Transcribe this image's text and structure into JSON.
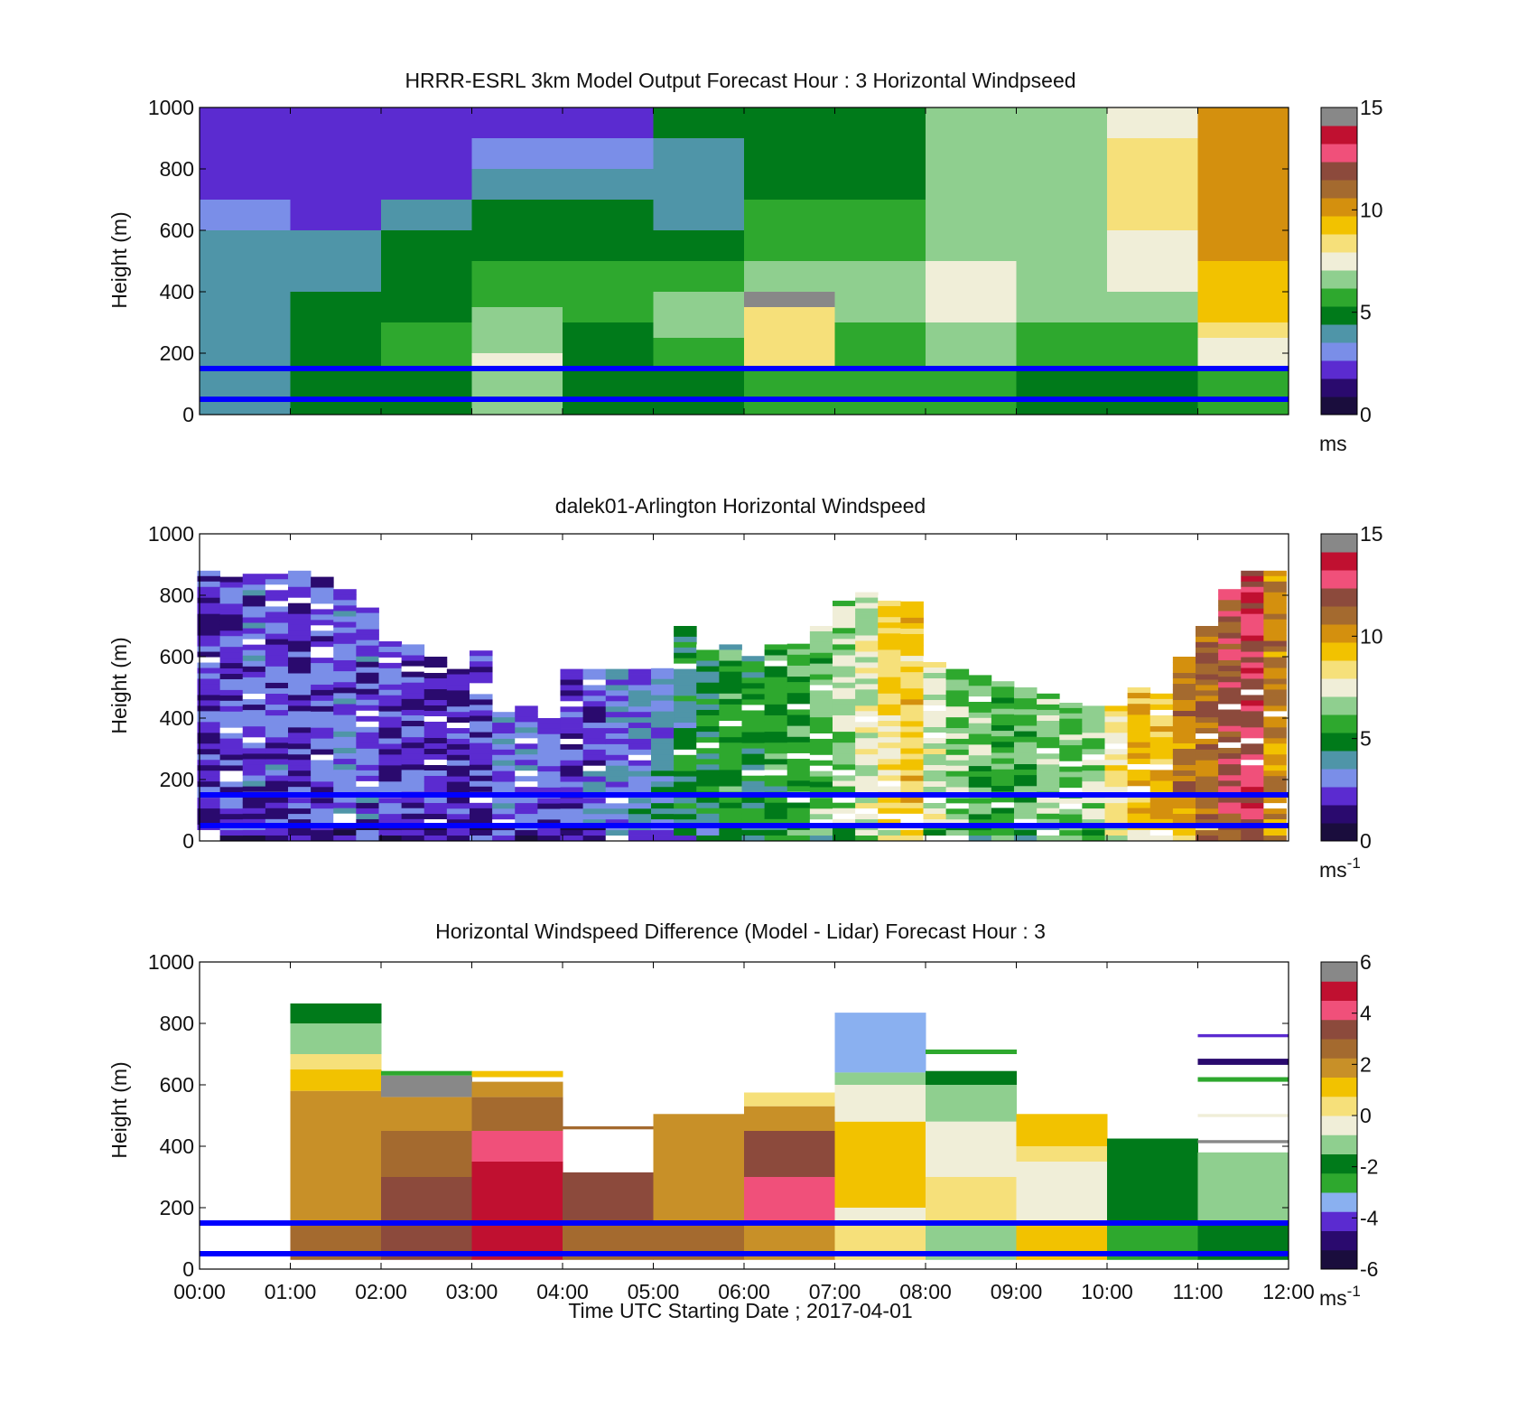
{
  "colors": {
    "ref_line": "#0000ff",
    "cmap_speed": [
      "#1a0d3d",
      "#2a0a6e",
      "#5b2bd0",
      "#7a8ee8",
      "#4f95a8",
      "#007a1a",
      "#2ea82e",
      "#8fcf8f",
      "#f0eed8",
      "#f6e07a",
      "#f2c200",
      "#d4900e",
      "#a46a2f",
      "#8c4a3c",
      "#f0507a",
      "#c01030",
      "#888888"
    ],
    "cmap_diff": [
      "#1a0d3d",
      "#2a0a6e",
      "#5b2bd0",
      "#8ab0f0",
      "#2ea82e",
      "#007a1a",
      "#8fcf8f",
      "#f0eed8",
      "#f6e07a",
      "#f2c200",
      "#c89028",
      "#a46a2f",
      "#8c4a3c",
      "#f0507a",
      "#c01030",
      "#888888"
    ]
  },
  "chart_data": [
    {
      "type": "heatmap",
      "title": "HRRR-ESRL 3km Model Output   Forecast Hour : 3 Horizontal Windpseed",
      "ylabel": "Height (m)",
      "xlabel": "",
      "ylim": [
        0,
        1000
      ],
      "yticks": [
        "0",
        "200",
        "400",
        "600",
        "800",
        "1000"
      ],
      "xlim": [
        0,
        12
      ],
      "xticks": [],
      "colorbar": {
        "min": 0,
        "max": 15,
        "ticks": [
          "0",
          "5",
          "10",
          "15"
        ],
        "unit": "ms",
        "unit_sup": ""
      },
      "reference_lines_m": [
        50,
        150
      ],
      "cells": [
        [
          0,
          2.0,
          800,
          1000
        ],
        [
          0,
          2.1,
          700,
          800
        ],
        [
          0,
          3.0,
          600,
          700
        ],
        [
          0,
          3.6,
          500,
          600
        ],
        [
          0,
          3.9,
          300,
          500
        ],
        [
          0,
          4.0,
          150,
          300
        ],
        [
          0,
          4.0,
          0,
          150
        ],
        [
          1,
          1.8,
          800,
          1000
        ],
        [
          1,
          2.0,
          700,
          800
        ],
        [
          1,
          2.6,
          600,
          700
        ],
        [
          1,
          3.6,
          500,
          600
        ],
        [
          1,
          4.0,
          400,
          500
        ],
        [
          1,
          4.6,
          300,
          400
        ],
        [
          1,
          4.5,
          150,
          300
        ],
        [
          1,
          4.6,
          0,
          150
        ],
        [
          2,
          2.0,
          800,
          1000
        ],
        [
          2,
          2.6,
          700,
          800
        ],
        [
          2,
          3.7,
          600,
          700
        ],
        [
          2,
          4.5,
          500,
          600
        ],
        [
          2,
          5.0,
          300,
          500
        ],
        [
          2,
          5.6,
          150,
          300
        ],
        [
          2,
          5.2,
          0,
          150
        ],
        [
          3,
          2.6,
          900,
          1000
        ],
        [
          3,
          2.9,
          800,
          900
        ],
        [
          3,
          4.0,
          700,
          800
        ],
        [
          3,
          5.0,
          500,
          700
        ],
        [
          3,
          5.8,
          350,
          500
        ],
        [
          3,
          6.6,
          200,
          350
        ],
        [
          3,
          7.2,
          150,
          200
        ],
        [
          3,
          6.4,
          0,
          150
        ],
        [
          4,
          2.6,
          900,
          1000
        ],
        [
          4,
          2.8,
          800,
          900
        ],
        [
          4,
          3.6,
          700,
          800
        ],
        [
          4,
          5.0,
          500,
          700
        ],
        [
          4,
          5.6,
          300,
          500
        ],
        [
          4,
          5.0,
          150,
          300
        ],
        [
          4,
          4.6,
          0,
          150
        ],
        [
          5,
          4.6,
          900,
          1000
        ],
        [
          5,
          4.2,
          700,
          900
        ],
        [
          5,
          4.0,
          600,
          700
        ],
        [
          5,
          5.0,
          500,
          600
        ],
        [
          5,
          5.6,
          400,
          500
        ],
        [
          5,
          6.4,
          250,
          400
        ],
        [
          5,
          5.8,
          150,
          250
        ],
        [
          5,
          5.2,
          0,
          150
        ],
        [
          6,
          5.0,
          700,
          1000
        ],
        [
          6,
          5.3,
          600,
          700
        ],
        [
          6,
          6.0,
          500,
          600
        ],
        [
          6,
          6.8,
          400,
          500
        ],
        [
          6,
          15.5,
          350,
          400
        ],
        [
          6,
          8.8,
          250,
          350
        ],
        [
          6,
          8.0,
          150,
          250
        ],
        [
          6,
          6.0,
          0,
          150
        ],
        [
          7,
          5.2,
          700,
          1000
        ],
        [
          7,
          5.5,
          600,
          700
        ],
        [
          7,
          6.0,
          500,
          600
        ],
        [
          7,
          6.4,
          300,
          500
        ],
        [
          7,
          5.8,
          150,
          300
        ],
        [
          7,
          5.4,
          0,
          150
        ],
        [
          8,
          6.6,
          700,
          1000
        ],
        [
          8,
          6.6,
          600,
          700
        ],
        [
          8,
          7.0,
          500,
          600
        ],
        [
          8,
          7.3,
          300,
          500
        ],
        [
          8,
          6.8,
          150,
          300
        ],
        [
          8,
          5.6,
          0,
          150
        ],
        [
          9,
          6.4,
          700,
          1000
        ],
        [
          9,
          6.8,
          600,
          700
        ],
        [
          9,
          7.0,
          500,
          600
        ],
        [
          9,
          7.0,
          400,
          500
        ],
        [
          9,
          6.4,
          300,
          400
        ],
        [
          9,
          5.6,
          150,
          300
        ],
        [
          9,
          5.0,
          0,
          150
        ],
        [
          10,
          7.8,
          900,
          1000
        ],
        [
          10,
          8.6,
          600,
          900
        ],
        [
          10,
          7.6,
          500,
          600
        ],
        [
          10,
          7.2,
          400,
          500
        ],
        [
          10,
          6.2,
          300,
          400
        ],
        [
          10,
          5.6,
          150,
          300
        ],
        [
          10,
          5.0,
          0,
          150
        ],
        [
          11,
          10.2,
          700,
          1000
        ],
        [
          11,
          9.8,
          500,
          700
        ],
        [
          11,
          9.4,
          300,
          500
        ],
        [
          11,
          8.6,
          250,
          300
        ],
        [
          11,
          7.4,
          150,
          250
        ],
        [
          11,
          6.0,
          0,
          150
        ]
      ],
      "columns": []
    },
    {
      "type": "heatmap",
      "title": "dalek01-Arlington  Horizontal Windspeed",
      "ylabel": "Height (m)",
      "xlabel": "",
      "ylim": [
        0,
        1000
      ],
      "yticks": [
        "0",
        "200",
        "400",
        "600",
        "800",
        "1000"
      ],
      "xlim": [
        0,
        12
      ],
      "xticks": [],
      "colorbar": {
        "min": 0,
        "max": 15,
        "ticks": [
          "0",
          "5",
          "10",
          "15"
        ],
        "unit": "ms",
        "unit_sup": "-1"
      },
      "reference_lines_m": [
        50,
        150
      ],
      "cells": [],
      "columns": [
        {
          "t": 0.1,
          "top": 880,
          "v": 2.2
        },
        {
          "t": 0.35,
          "top": 860,
          "v": 2.4
        },
        {
          "t": 0.6,
          "top": 870,
          "v": 2.6
        },
        {
          "t": 0.85,
          "top": 870,
          "v": 2.5
        },
        {
          "t": 1.1,
          "top": 880,
          "v": 2.3
        },
        {
          "t": 1.35,
          "top": 860,
          "v": 2.4
        },
        {
          "t": 1.6,
          "top": 820,
          "v": 2.8
        },
        {
          "t": 1.85,
          "top": 760,
          "v": 2.6
        },
        {
          "t": 2.1,
          "top": 650,
          "v": 2.2
        },
        {
          "t": 2.35,
          "top": 640,
          "v": 2.0
        },
        {
          "t": 2.6,
          "top": 600,
          "v": 1.8
        },
        {
          "t": 2.85,
          "top": 560,
          "v": 2.0
        },
        {
          "t": 3.1,
          "top": 620,
          "v": 2.4
        },
        {
          "t": 3.35,
          "top": 420,
          "v": 2.8
        },
        {
          "t": 3.6,
          "top": 440,
          "v": 3.0
        },
        {
          "t": 3.85,
          "top": 400,
          "v": 2.4
        },
        {
          "t": 4.1,
          "top": 560,
          "v": 2.3
        },
        {
          "t": 4.35,
          "top": 560,
          "v": 2.6
        },
        {
          "t": 4.6,
          "top": 560,
          "v": 3.0
        },
        {
          "t": 4.85,
          "top": 560,
          "v": 3.4
        },
        {
          "t": 5.1,
          "top": 580,
          "v": 3.6
        },
        {
          "t": 5.35,
          "top": 700,
          "v": 4.6
        },
        {
          "t": 5.6,
          "top": 640,
          "v": 4.9
        },
        {
          "t": 5.85,
          "top": 640,
          "v": 5.2
        },
        {
          "t": 6.1,
          "top": 620,
          "v": 5.0
        },
        {
          "t": 6.35,
          "top": 640,
          "v": 5.4
        },
        {
          "t": 6.6,
          "top": 660,
          "v": 5.6
        },
        {
          "t": 6.85,
          "top": 700,
          "v": 6.2
        },
        {
          "t": 7.1,
          "top": 800,
          "v": 6.8
        },
        {
          "t": 7.35,
          "top": 810,
          "v": 7.4
        },
        {
          "t": 7.6,
          "top": 800,
          "v": 8.6
        },
        {
          "t": 7.85,
          "top": 780,
          "v": 9.0
        },
        {
          "t": 8.1,
          "top": 600,
          "v": 7.0
        },
        {
          "t": 8.35,
          "top": 560,
          "v": 6.6
        },
        {
          "t": 8.6,
          "top": 540,
          "v": 6.2
        },
        {
          "t": 8.85,
          "top": 520,
          "v": 5.8
        },
        {
          "t": 9.1,
          "top": 500,
          "v": 5.8
        },
        {
          "t": 9.35,
          "top": 480,
          "v": 6.2
        },
        {
          "t": 9.6,
          "top": 450,
          "v": 6.6
        },
        {
          "t": 9.85,
          "top": 440,
          "v": 6.8
        },
        {
          "t": 10.1,
          "top": 440,
          "v": 8.2
        },
        {
          "t": 10.35,
          "top": 500,
          "v": 9.2
        },
        {
          "t": 10.6,
          "top": 480,
          "v": 9.6
        },
        {
          "t": 10.85,
          "top": 600,
          "v": 10.6
        },
        {
          "t": 11.1,
          "top": 700,
          "v": 11.0
        },
        {
          "t": 11.35,
          "top": 820,
          "v": 12.0
        },
        {
          "t": 11.6,
          "top": 880,
          "v": 12.6
        },
        {
          "t": 11.85,
          "top": 880,
          "v": 10.4
        }
      ]
    },
    {
      "type": "heatmap",
      "title": "Horizontal Windspeed Difference (Model - Lidar) Forecast Hour : 3",
      "ylabel": "Height (m)",
      "xlabel": "Time UTC  Starting Date ; 2017-04-01",
      "ylim": [
        0,
        1000
      ],
      "yticks": [
        "0",
        "200",
        "400",
        "600",
        "800",
        "1000"
      ],
      "xlim": [
        0,
        12
      ],
      "xticks": [
        "00:00",
        "01:00",
        "02:00",
        "03:00",
        "04:00",
        "05:00",
        "06:00",
        "07:00",
        "08:00",
        "09:00",
        "10:00",
        "11:00",
        "12:00"
      ],
      "colorbar": {
        "min": -6,
        "max": 6,
        "ticks": [
          "-6",
          "-4",
          "-2",
          "0",
          "2",
          "4",
          "6"
        ],
        "unit": "ms",
        "unit_sup": "-1"
      },
      "reference_lines_m": [
        50,
        150
      ],
      "cells": [
        [
          1,
          -1.8,
          800,
          865
        ],
        [
          1,
          -1.0,
          700,
          800
        ],
        [
          1,
          0.2,
          650,
          700
        ],
        [
          1,
          1.2,
          580,
          650
        ],
        [
          1,
          1.5,
          450,
          580
        ],
        [
          1,
          2.2,
          150,
          450
        ],
        [
          1,
          2.6,
          30,
          150
        ],
        [
          2,
          -2.6,
          630,
          645
        ],
        [
          2,
          6.4,
          560,
          630
        ],
        [
          2,
          2.2,
          450,
          560
        ],
        [
          2,
          2.8,
          300,
          450
        ],
        [
          2,
          3.5,
          150,
          300
        ],
        [
          2,
          3.0,
          30,
          150
        ],
        [
          3,
          1.4,
          625,
          645
        ],
        [
          3,
          1.8,
          560,
          610
        ],
        [
          3,
          2.8,
          450,
          560
        ],
        [
          3,
          4.3,
          350,
          450
        ],
        [
          3,
          4.8,
          150,
          350
        ],
        [
          3,
          5.0,
          30,
          150
        ],
        [
          4,
          2.6,
          455,
          465
        ],
        [
          4,
          3.0,
          150,
          315
        ],
        [
          4,
          2.4,
          30,
          150
        ],
        [
          5,
          2.0,
          150,
          505
        ],
        [
          5,
          2.8,
          30,
          150
        ],
        [
          6,
          0.2,
          530,
          575
        ],
        [
          6,
          1.8,
          450,
          530
        ],
        [
          6,
          3.2,
          300,
          450
        ],
        [
          6,
          4.0,
          150,
          300
        ],
        [
          6,
          2.0,
          30,
          150
        ],
        [
          7,
          -3.2,
          640,
          835
        ],
        [
          7,
          -1.0,
          600,
          640
        ],
        [
          7,
          -0.4,
          480,
          600
        ],
        [
          7,
          1.0,
          300,
          480
        ],
        [
          7,
          1.3,
          200,
          300
        ],
        [
          7,
          -0.3,
          150,
          200
        ],
        [
          7,
          0.5,
          30,
          150
        ],
        [
          8,
          -2.4,
          700,
          715
        ],
        [
          8,
          -2.0,
          600,
          645
        ],
        [
          8,
          -0.8,
          480,
          600
        ],
        [
          8,
          -0.2,
          300,
          480
        ],
        [
          8,
          0.6,
          150,
          300
        ],
        [
          8,
          -1.5,
          30,
          150
        ],
        [
          9,
          1.2,
          400,
          505
        ],
        [
          9,
          0.4,
          350,
          400
        ],
        [
          9,
          -0.6,
          150,
          350
        ],
        [
          9,
          1.4,
          30,
          150
        ],
        [
          10,
          -1.6,
          150,
          425
        ],
        [
          10,
          -2.4,
          30,
          150
        ],
        [
          11,
          -3.8,
          755,
          765
        ],
        [
          11,
          -5.2,
          665,
          685
        ],
        [
          11,
          -2.8,
          610,
          625
        ],
        [
          11,
          -0.6,
          495,
          505
        ],
        [
          11,
          6.4,
          410,
          420
        ],
        [
          11,
          -1.2,
          150,
          380
        ],
        [
          11,
          -2.2,
          30,
          150
        ]
      ],
      "columns": []
    }
  ]
}
